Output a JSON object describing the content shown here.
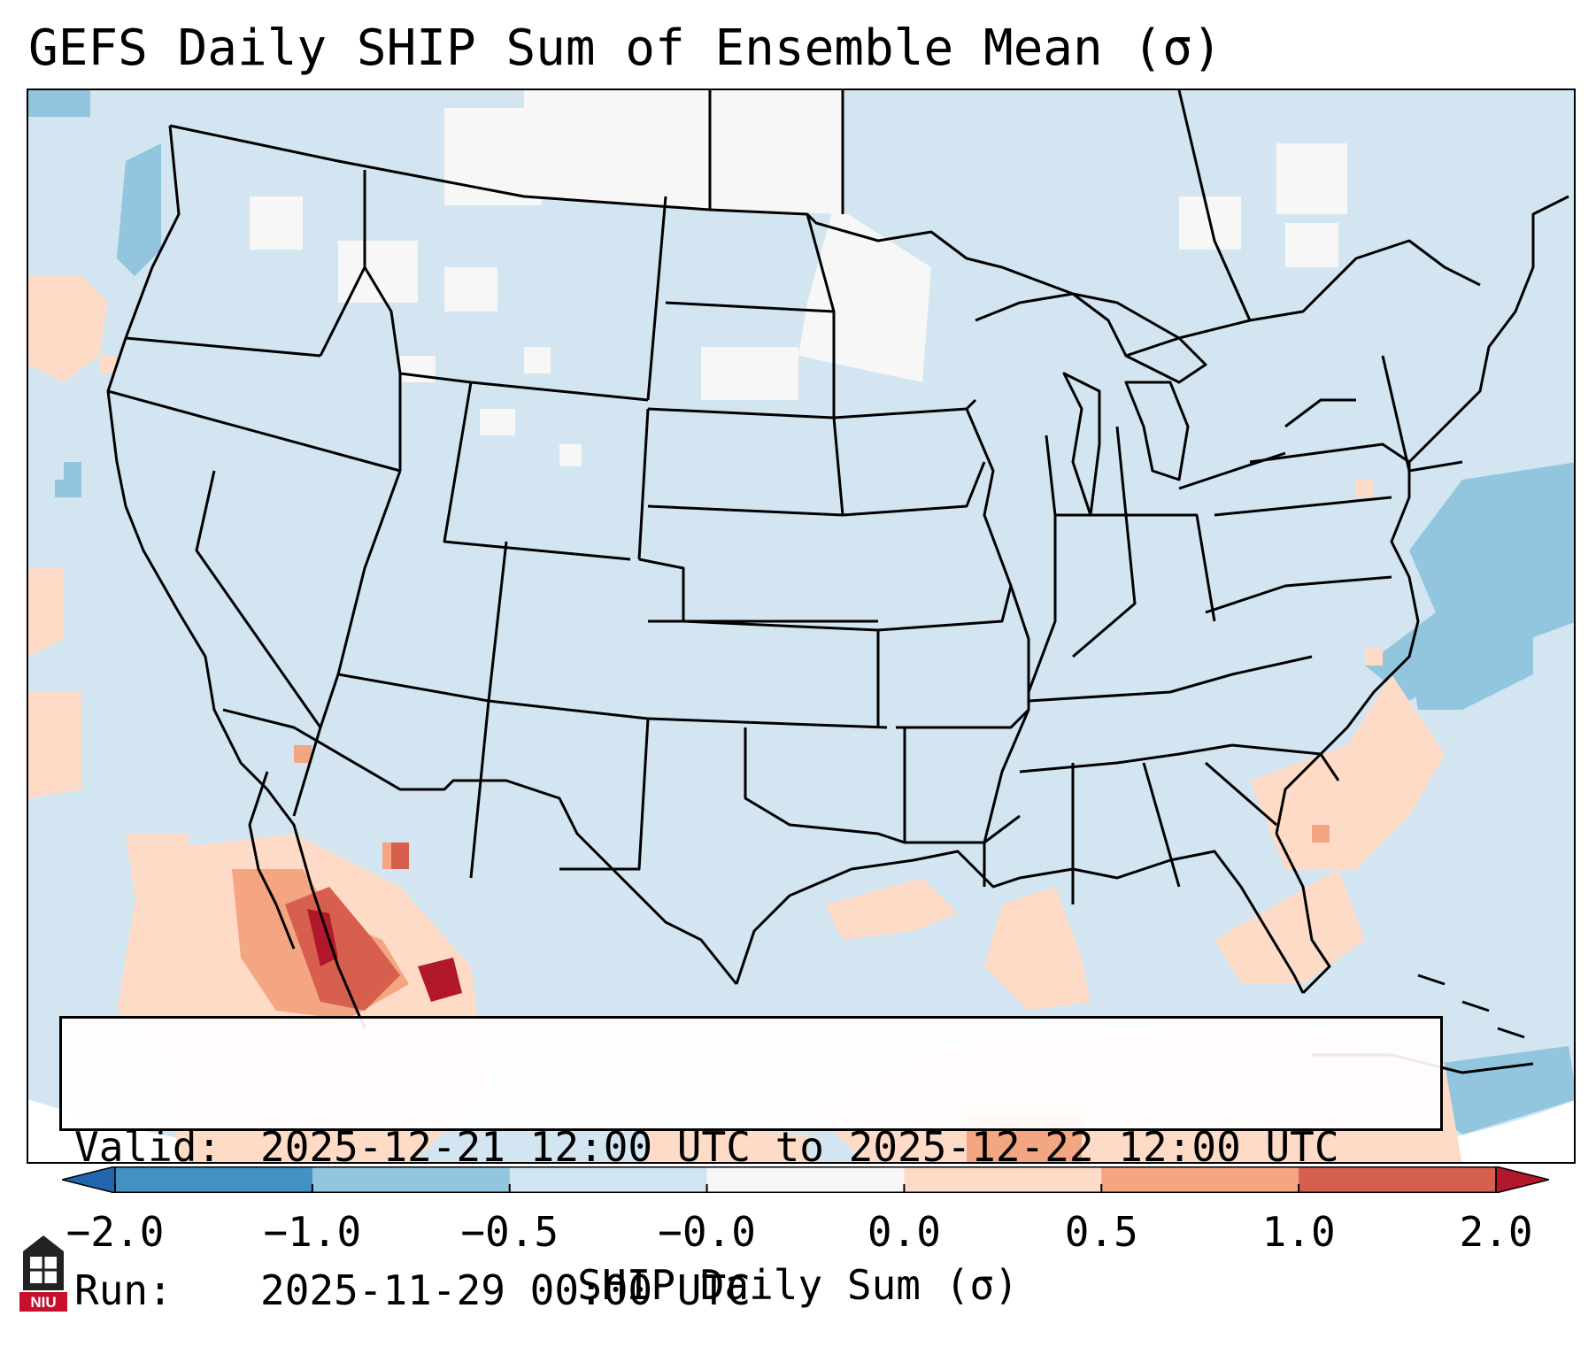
{
  "title": "GEFS Daily SHIP Sum of Ensemble Mean (σ)",
  "info": {
    "valid_label": "Valid:",
    "valid_value": "2025-12-21 12:00 UTC to 2025-12-22 12:00 UTC",
    "run_label": "Run:",
    "run_value": "2025-11-29 00:00 UTC"
  },
  "colorbar": {
    "label": "SHIP Daily Sum (σ)",
    "ticks": [
      "−2.0",
      "−1.0",
      "−0.5",
      "−0.0",
      "0.0",
      "0.5",
      "1.0",
      "2.0"
    ],
    "bins": [
      {
        "range": "-2.0 to -1.0",
        "color": "#4392c4"
      },
      {
        "range": "-1.0 to -0.5",
        "color": "#92c5de"
      },
      {
        "range": "-0.5 to -0.0",
        "color": "#d1e5f0"
      },
      {
        "range": "-0.0 to 0.0",
        "color": "#f7f7f7"
      },
      {
        "range": "0.0 to 0.5",
        "color": "#fddbc7"
      },
      {
        "range": "0.5 to 1.0",
        "color": "#f4a582"
      },
      {
        "range": "1.0 to 2.0",
        "color": "#d6604d"
      }
    ],
    "under_color": "#2166ac",
    "over_color": "#b2182b"
  },
  "map": {
    "region": "Continental United States",
    "background_color": "#d1e5f0",
    "border_color": "#000000"
  },
  "logo": {
    "text": "NIU",
    "color": "#c8102e"
  }
}
